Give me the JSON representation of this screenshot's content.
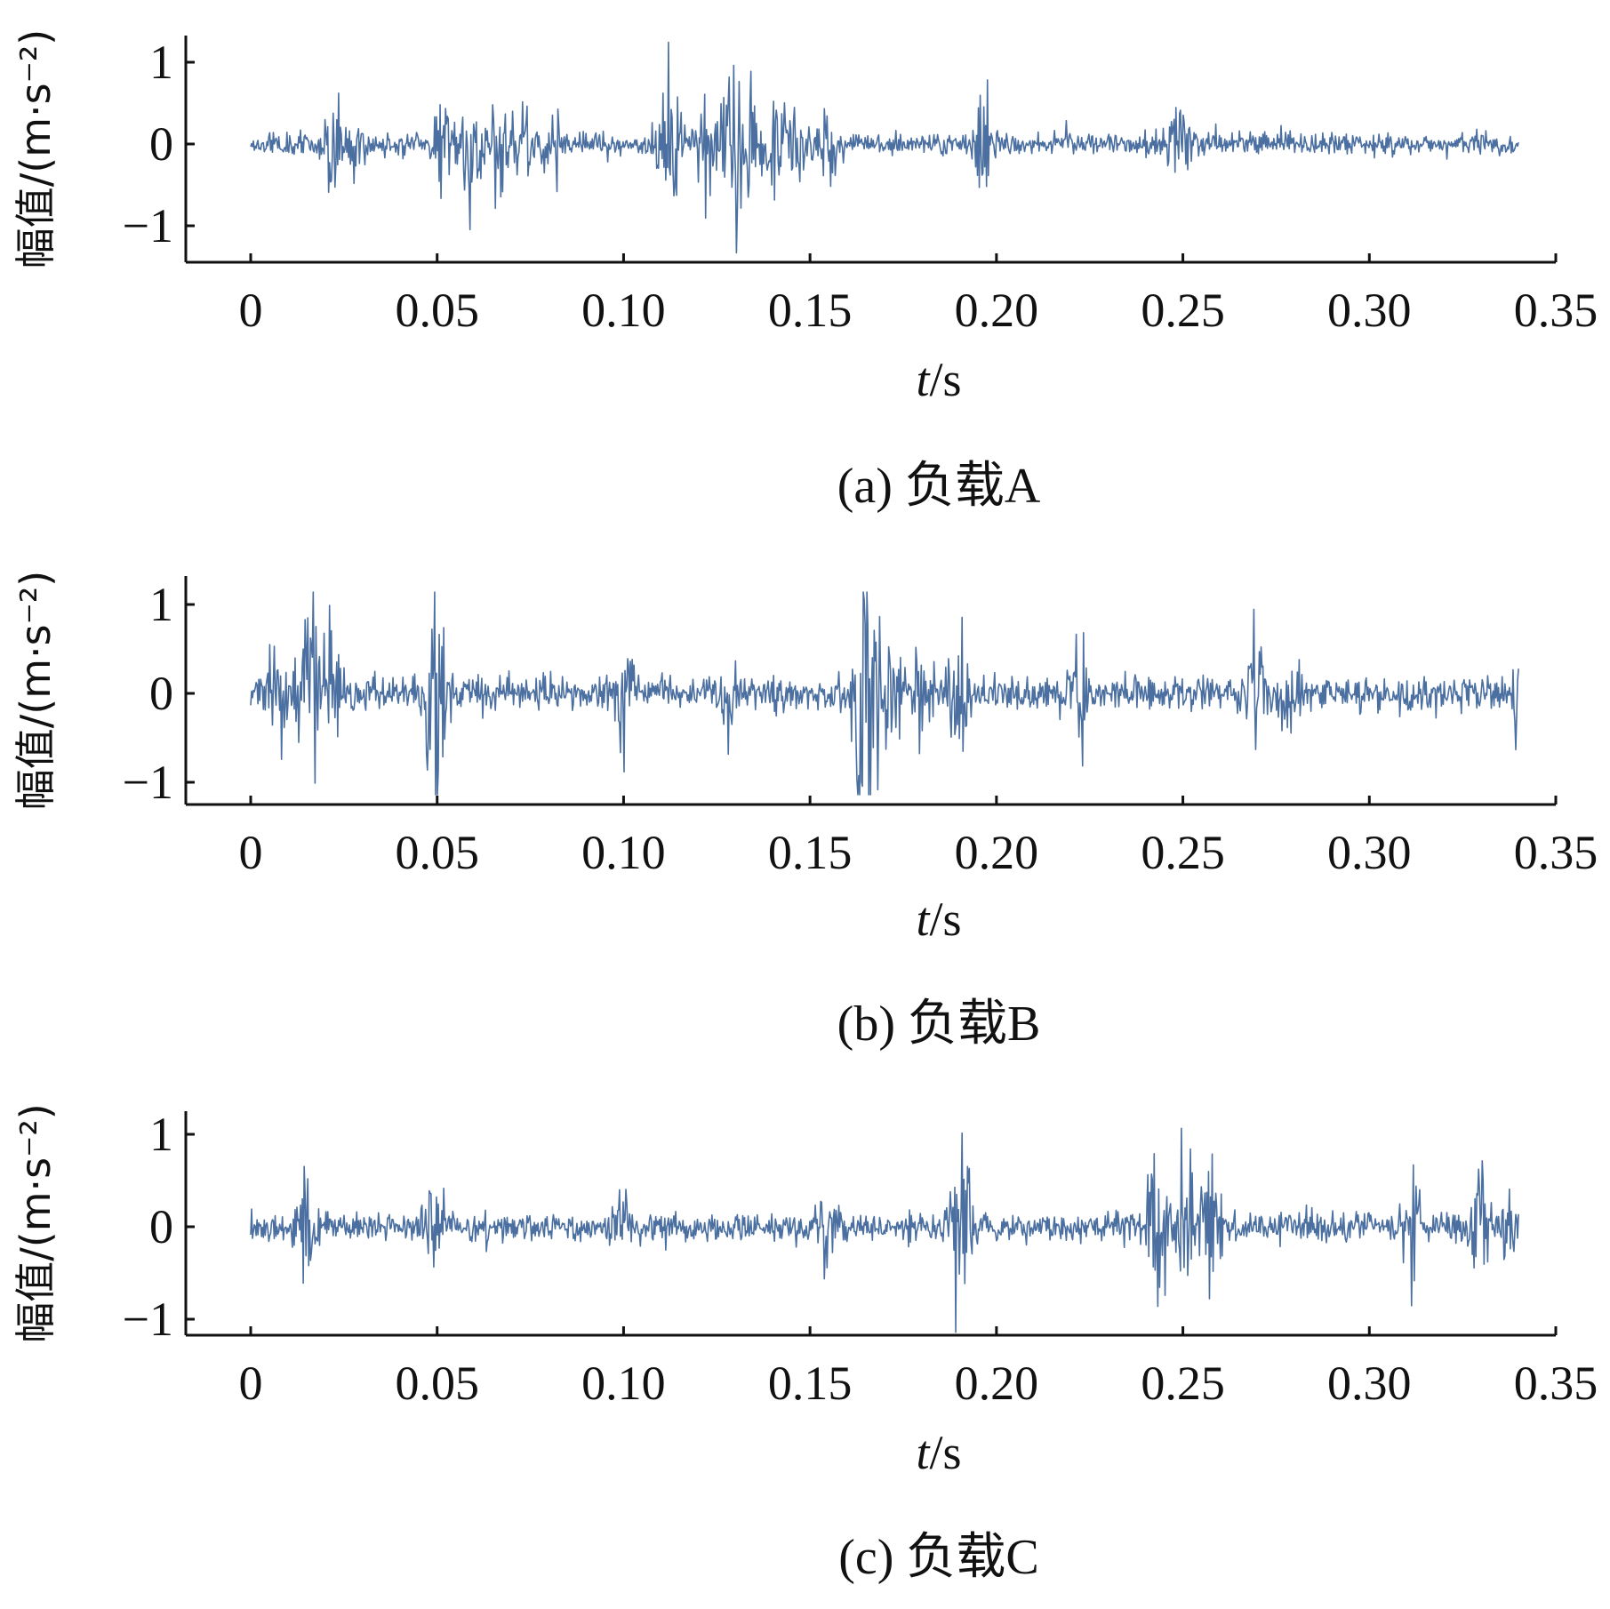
{
  "chart_data": [
    {
      "type": "line",
      "caption": "(a) 负载A",
      "xlabel": "t/s",
      "ylabel": "幅值/(m·s⁻²)",
      "xlim": [
        0,
        0.35
      ],
      "ylim": [
        -1.4,
        1.4
      ],
      "x_ticks": [
        "0",
        "0.05",
        "0.10",
        "0.15",
        "0.20",
        "0.25",
        "0.30",
        "0.35"
      ],
      "y_ticks": [
        "1",
        "0",
        "−1"
      ],
      "series_color": "#4a6fa0",
      "signal": {
        "x_start": 0,
        "x_end": 0.34,
        "n": 1400,
        "noise": 0.07,
        "seed": 11,
        "bursts": [
          [
            0.022,
            0.5
          ],
          [
            0.028,
            0.45
          ],
          [
            0.052,
            0.6
          ],
          [
            0.059,
            0.85
          ],
          [
            0.067,
            0.55
          ],
          [
            0.074,
            0.4
          ],
          [
            0.081,
            0.45
          ],
          [
            0.111,
            0.45
          ],
          [
            0.114,
            0.5
          ],
          [
            0.122,
            0.5
          ],
          [
            0.129,
            1.25
          ],
          [
            0.134,
            0.8
          ],
          [
            0.141,
            0.7
          ],
          [
            0.146,
            0.5
          ],
          [
            0.155,
            0.5
          ],
          [
            0.197,
            0.7
          ],
          [
            0.249,
            0.45
          ]
        ]
      }
    },
    {
      "type": "line",
      "caption": "(b) 负载B",
      "xlabel": "t/s",
      "ylabel": "幅值/(m·s⁻²)",
      "xlim": [
        0,
        0.35
      ],
      "ylim": [
        -1.2,
        1.2
      ],
      "x_ticks": [
        "0",
        "0.05",
        "0.10",
        "0.15",
        "0.20",
        "0.25",
        "0.30",
        "0.35"
      ],
      "y_ticks": [
        "1",
        "0",
        "−1"
      ],
      "series_color": "#4a6fa0",
      "signal": {
        "x_start": 0,
        "x_end": 0.34,
        "n": 1400,
        "noise": 0.1,
        "seed": 23,
        "bursts": [
          [
            0.007,
            0.4
          ],
          [
            0.014,
            0.5
          ],
          [
            0.017,
            1.1
          ],
          [
            0.022,
            0.6
          ],
          [
            0.048,
            0.5
          ],
          [
            0.05,
            1.0
          ],
          [
            0.1,
            0.45
          ],
          [
            0.128,
            0.35
          ],
          [
            0.164,
            0.9
          ],
          [
            0.166,
            1.1
          ],
          [
            0.172,
            0.7
          ],
          [
            0.18,
            0.55
          ],
          [
            0.19,
            0.85
          ],
          [
            0.222,
            0.5
          ],
          [
            0.27,
            0.5
          ],
          [
            0.278,
            0.5
          ],
          [
            0.34,
            0.35
          ]
        ]
      }
    },
    {
      "type": "line",
      "caption": "(c) 负载C",
      "xlabel": "t/s",
      "ylabel": "幅值/(m·s⁻²)",
      "xlim": [
        0,
        0.35
      ],
      "ylim": [
        -1.2,
        1.2
      ],
      "x_ticks": [
        "0",
        "0.05",
        "0.10",
        "0.15",
        "0.20",
        "0.25",
        "0.30",
        "0.35"
      ],
      "y_ticks": [
        "1",
        "0",
        "−1"
      ],
      "series_color": "#4a6fa0",
      "signal": {
        "x_start": 0,
        "x_end": 0.34,
        "n": 1400,
        "noise": 0.08,
        "seed": 37,
        "bursts": [
          [
            0.015,
            0.45
          ],
          [
            0.049,
            0.45
          ],
          [
            0.1,
            0.4
          ],
          [
            0.155,
            0.4
          ],
          [
            0.19,
            1.05
          ],
          [
            0.243,
            1.0
          ],
          [
            0.25,
            0.9
          ],
          [
            0.258,
            0.5
          ],
          [
            0.312,
            0.55
          ],
          [
            0.33,
            0.6
          ],
          [
            0.338,
            0.4
          ]
        ]
      }
    }
  ]
}
